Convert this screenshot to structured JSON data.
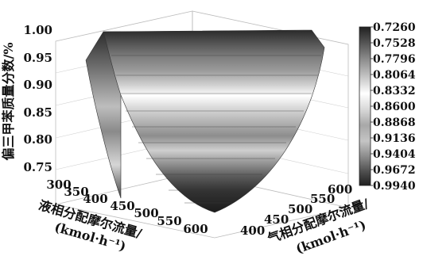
{
  "chart_data": {
    "type": "surface",
    "title": "",
    "zlabel": "偏三甲苯质量分数/%",
    "xlabel_line1": "液相分配摩尔流量/",
    "xlabel_line2": "(kmol·h⁻¹)",
    "ylabel_line1": "气相分配摩尔流量/",
    "ylabel_line2": "(kmol·h⁻¹)",
    "x_ticks": [
      "300",
      "350",
      "400",
      "450",
      "500",
      "550",
      "600"
    ],
    "y_ticks": [
      "400",
      "450",
      "500",
      "550",
      "600"
    ],
    "z_ticks": [
      "0.75",
      "0.80",
      "0.85",
      "0.90",
      "0.95",
      "1.00"
    ],
    "zlim": [
      0.73,
      1.0
    ],
    "colorbar": {
      "min": 0.726,
      "max": 0.994,
      "labels": [
        "0.7260",
        "0.7528",
        "0.7796",
        "0.8064",
        "0.8332",
        "0.8600",
        "0.8868",
        "0.9136",
        "0.9404",
        "0.9672",
        "0.9940"
      ]
    },
    "surface_note_values": {
      "top_edge_z": 0.994,
      "bottom_vertex_z": 0.726
    }
  }
}
